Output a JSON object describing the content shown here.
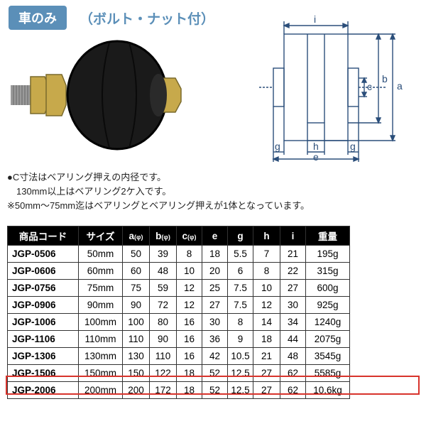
{
  "header": {
    "tab": "車のみ",
    "subtitle": "（ボルト・ナット付）"
  },
  "photo": {
    "body_color": "#1a1a1a",
    "bolt_color": "#c7a94b",
    "bolt_dark": "#7a6a2c",
    "groove": "#000000"
  },
  "diagram": {
    "line_color": "#2b4e7a",
    "line_width": 1.4,
    "labels": {
      "a": "a",
      "b": "b",
      "c": "c",
      "e": "e",
      "g": "g",
      "h": "h",
      "i": "i"
    }
  },
  "notes": {
    "line1": "●C寸法はベアリング押えの内径です。",
    "line2": "　130mm以上はベアリング2ケ入です。",
    "line3": "※50mm〜75mm迄はベアリングとベアリング押えが1体となっています。"
  },
  "table": {
    "headers": [
      "商品コード",
      "サイズ",
      "a",
      "b",
      "c",
      "e",
      "g",
      "h",
      "i",
      "重量"
    ],
    "header_sub": "(φ)",
    "rows": [
      {
        "code": "JGP-0506",
        "size": "50mm",
        "a": "50",
        "b": "39",
        "c": "8",
        "e": "18",
        "g": "5.5",
        "h": "7",
        "i": "21",
        "wt": "195g",
        "hl": false
      },
      {
        "code": "JGP-0606",
        "size": "60mm",
        "a": "60",
        "b": "48",
        "c": "10",
        "e": "20",
        "g": "6",
        "h": "8",
        "i": "22",
        "wt": "315g",
        "hl": false
      },
      {
        "code": "JGP-0756",
        "size": "75mm",
        "a": "75",
        "b": "59",
        "c": "12",
        "e": "25",
        "g": "7.5",
        "h": "10",
        "i": "27",
        "wt": "600g",
        "hl": false
      },
      {
        "code": "JGP-0906",
        "size": "90mm",
        "a": "90",
        "b": "72",
        "c": "12",
        "e": "27",
        "g": "7.5",
        "h": "12",
        "i": "30",
        "wt": "925g",
        "hl": false
      },
      {
        "code": "JGP-1006",
        "size": "100mm",
        "a": "100",
        "b": "80",
        "c": "16",
        "e": "30",
        "g": "8",
        "h": "14",
        "i": "34",
        "wt": "1240g",
        "hl": false
      },
      {
        "code": "JGP-1106",
        "size": "110mm",
        "a": "110",
        "b": "90",
        "c": "16",
        "e": "36",
        "g": "9",
        "h": "18",
        "i": "44",
        "wt": "2075g",
        "hl": false
      },
      {
        "code": "JGP-1306",
        "size": "130mm",
        "a": "130",
        "b": "110",
        "c": "16",
        "e": "42",
        "g": "10.5",
        "h": "21",
        "i": "48",
        "wt": "3545g",
        "hl": false
      },
      {
        "code": "JGP-1506",
        "size": "150mm",
        "a": "150",
        "b": "122",
        "c": "18",
        "e": "52",
        "g": "12.5",
        "h": "27",
        "i": "62",
        "wt": "5585g",
        "hl": false
      },
      {
        "code": "JGP-2006",
        "size": "200mm",
        "a": "200",
        "b": "172",
        "c": "18",
        "e": "52",
        "g": "12.5",
        "h": "27",
        "i": "62",
        "wt": "10.6kg",
        "hl": true
      }
    ],
    "header_bg": "#000000",
    "header_fg": "#ffffff",
    "border_color": "#333333",
    "highlight_border": "#d8332c"
  }
}
